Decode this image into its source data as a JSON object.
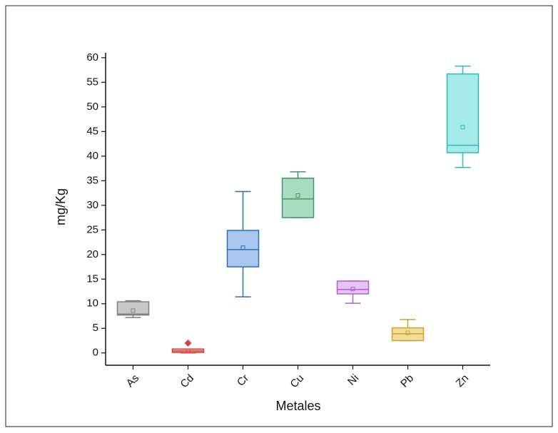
{
  "chart_data": {
    "type": "box",
    "x_label": "Metales",
    "y_label": "mg/Kg",
    "categories": [
      "As",
      "Cd",
      "Cr",
      "Cu",
      "Ni",
      "Pb",
      "Zn"
    ],
    "boxes": [
      {
        "whisker_low": 7.2,
        "q1": 7.7,
        "median": 7.9,
        "q3": 10.4,
        "whisker_high": 10.6,
        "mean": 8.6,
        "color": "#7f7f7f",
        "fill": "#c8c8c8"
      },
      {
        "whisker_low": 0.0,
        "q1": 0.1,
        "median": 0.4,
        "q3": 0.8,
        "whisker_high": 0.8,
        "mean": 0.4,
        "outliers": [
          2.0
        ],
        "color": "#d94040",
        "fill": "#f2b3b3"
      },
      {
        "whisker_low": 11.4,
        "q1": 17.5,
        "median": 21.0,
        "q3": 24.9,
        "whisker_high": 32.8,
        "mean": 21.4,
        "color": "#2f6fb5",
        "fill": "#a9c6ec"
      },
      {
        "whisker_low": 27.5,
        "q1": 27.5,
        "median": 31.3,
        "q3": 35.5,
        "whisker_high": 36.8,
        "mean": 32.0,
        "color": "#3c9a66",
        "fill": "#aadbbf"
      },
      {
        "whisker_low": 10.1,
        "q1": 12.0,
        "median": 12.9,
        "q3": 14.6,
        "whisker_high": 14.6,
        "mean": 13.0,
        "color": "#b25fcc",
        "fill": "#e5c3f2"
      },
      {
        "whisker_low": 2.5,
        "q1": 2.5,
        "median": 3.9,
        "q3": 5.1,
        "whisker_high": 6.8,
        "mean": 4.1,
        "color": "#c9a52a",
        "fill": "#f2dc9a"
      },
      {
        "whisker_low": 37.7,
        "q1": 40.7,
        "median": 42.2,
        "q3": 56.7,
        "whisker_high": 58.3,
        "mean": 45.9,
        "color": "#2bbcbc",
        "fill": "#a6eaea"
      }
    ],
    "ylim": [
      -2.5,
      61
    ],
    "yticks": [
      0,
      5,
      10,
      15,
      20,
      25,
      30,
      35,
      40,
      45,
      50,
      55,
      60
    ]
  }
}
